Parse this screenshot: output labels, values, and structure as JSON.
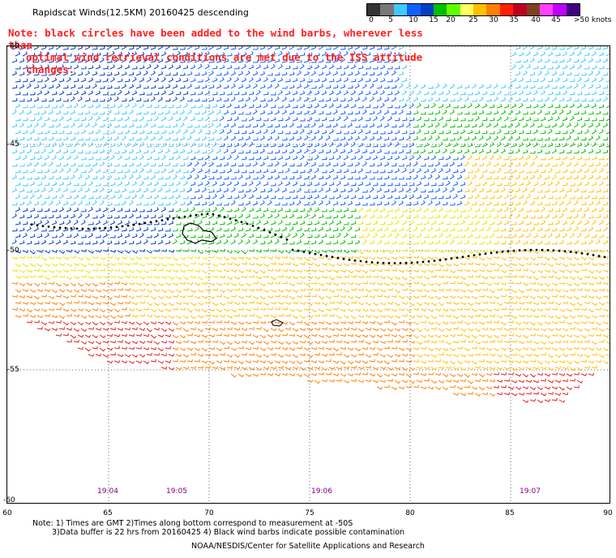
{
  "header": {
    "title": "Rapidscat Winds(12.5KM) 20160425 descending",
    "note_line1": "Note: black circles have been added to the wind barbs, wherever less than",
    "note_line2": "optimal wind retrieval conditions are met due to the ISS attitude changes."
  },
  "legend": {
    "unit": ">50 knots",
    "labels": [
      "0",
      "5",
      "10",
      "15",
      "20",
      "25",
      "30",
      "35",
      "40",
      "45"
    ],
    "colors": [
      "#333333",
      "#777777",
      "#40c8ff",
      "#1060ff",
      "#0040c0",
      "#00c000",
      "#60ff00",
      "#ffff60",
      "#ffc000",
      "#ff8000",
      "#ff2000",
      "#c00020",
      "#804020",
      "#ff40ff",
      "#c000ff",
      "#400080"
    ]
  },
  "axes": {
    "lat_labels": [
      "-40",
      "-45",
      "-50",
      "-55",
      "-60"
    ],
    "lon_labels": [
      "60",
      "65",
      "70",
      "75",
      "80",
      "85",
      "90"
    ]
  },
  "times": [
    "19:04",
    "19:05",
    "19:06",
    "19:07"
  ],
  "footer": {
    "note1": "Note: 1) Times are GMT 2)Times along bottom correspond to measurement at -50S",
    "note2": "3)Data buffer is 22 hrs from 20160425 4) Black wind barbs indicate possible contamination",
    "credit": "NOAA/NESDIS/Center for Satellite Applications and Research"
  }
}
